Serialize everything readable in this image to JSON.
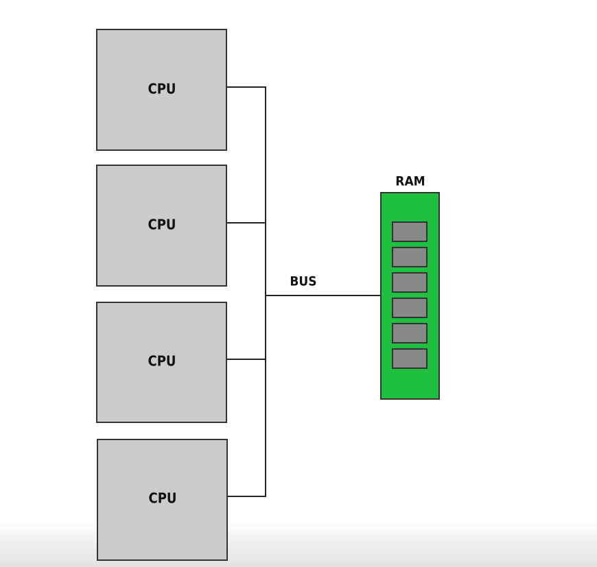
{
  "diagram": {
    "cpus": [
      {
        "label": "CPU"
      },
      {
        "label": "CPU"
      },
      {
        "label": "CPU"
      },
      {
        "label": "CPU"
      }
    ],
    "bus": {
      "label": "BUS"
    },
    "ram": {
      "label": "RAM",
      "slot_count": 6
    },
    "colors": {
      "cpu_fill": "#cccccc",
      "ram_fill": "#1fbf3f",
      "ram_slot_fill": "#888888",
      "line": "#222222"
    }
  }
}
